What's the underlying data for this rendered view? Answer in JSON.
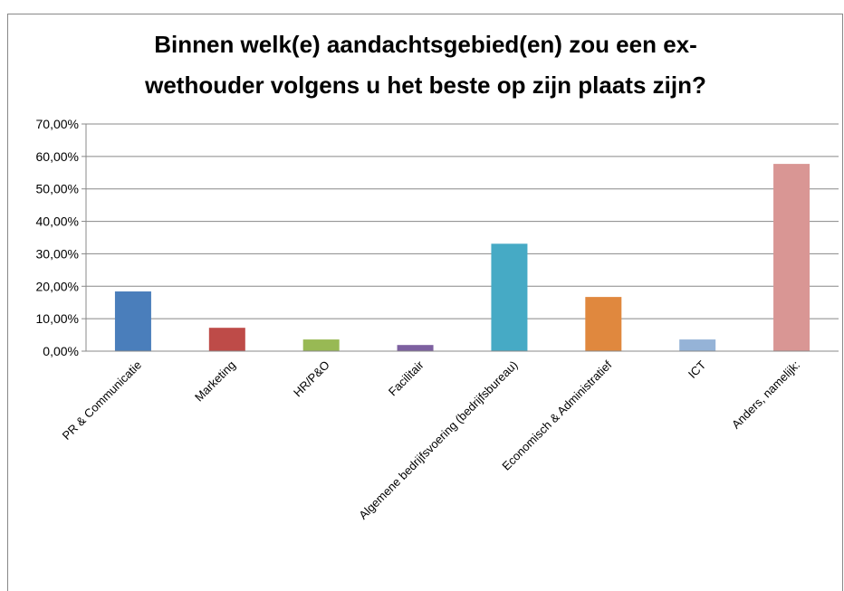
{
  "chart_data": {
    "type": "bar",
    "title": [
      "Binnen welk(e) aandachtsgebied(en) zou een ex-",
      "wethouder volgens u het beste op zijn plaats zijn?"
    ],
    "categories": [
      "PR & Communicatie",
      "Marketing",
      "HR/P&O",
      "Facilitair",
      "Algemene bedrijfsvoering (bedrijfsbureau)",
      "Economisch & Administratief",
      "ICT",
      "Anders, namelijk:"
    ],
    "values": [
      18.4,
      7.2,
      3.6,
      1.9,
      33.1,
      16.7,
      3.6,
      57.7
    ],
    "colors": [
      "#4a7ebb",
      "#be4b48",
      "#98b954",
      "#7d60a0",
      "#46aac5",
      "#e0883e",
      "#95b3d7",
      "#d99694"
    ],
    "ylim": [
      0,
      70
    ],
    "yticks": [
      {
        "value": 0,
        "label": "0,00%"
      },
      {
        "value": 10,
        "label": "10,00%"
      },
      {
        "value": 20,
        "label": "20,00%"
      },
      {
        "value": 30,
        "label": "30,00%"
      },
      {
        "value": 40,
        "label": "40,00%"
      },
      {
        "value": 50,
        "label": "50,00%"
      },
      {
        "value": 60,
        "label": "60,00%"
      },
      {
        "value": 70,
        "label": "70,00%"
      }
    ],
    "grid": true
  }
}
